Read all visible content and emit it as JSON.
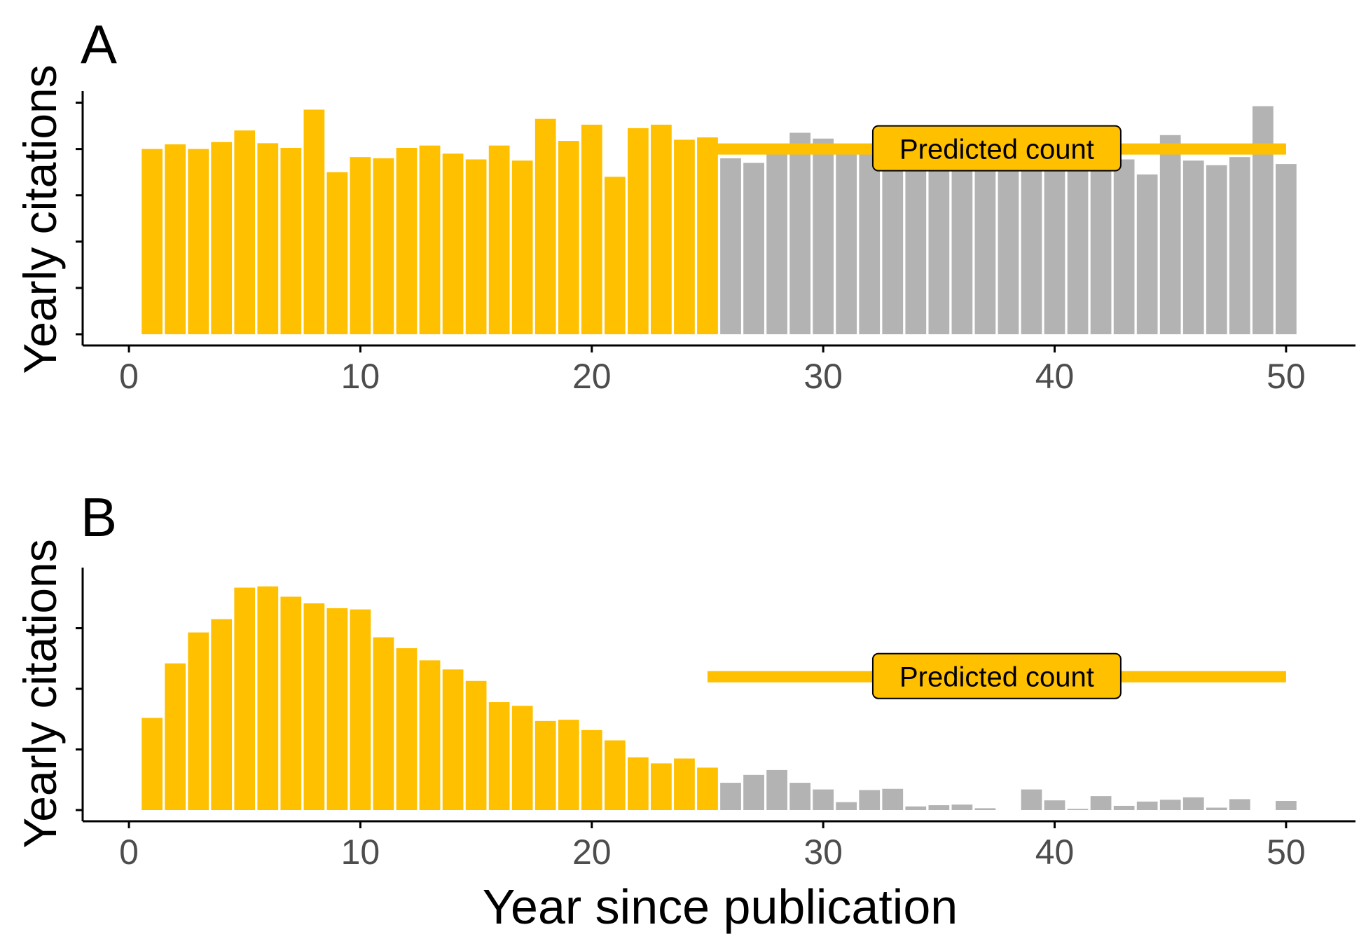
{
  "colors": {
    "observed": "#ffc000",
    "future": "#b3b3b3",
    "predicted_line": "#ffc000",
    "axis": "#000000",
    "tick_text": "#4d4d4d"
  },
  "xlabel": "Year since publication",
  "chart_data": [
    {
      "type": "bar",
      "panel": "A",
      "ylabel": "Yearly citations",
      "xlim": [
        -2,
        53
      ],
      "ylim": [
        0,
        10.5
      ],
      "x_ticks": [
        0,
        10,
        20,
        30,
        40,
        50
      ],
      "x_tick_labels": [
        "0",
        "10",
        "20",
        "30",
        "40",
        "50"
      ],
      "y_ticks": [
        0,
        2,
        4,
        6,
        8,
        10
      ],
      "y_tick_labels": [],
      "observed_years": [
        1,
        25
      ],
      "x": [
        1,
        2,
        3,
        4,
        5,
        6,
        7,
        8,
        9,
        10,
        11,
        12,
        13,
        14,
        15,
        16,
        17,
        18,
        19,
        20,
        21,
        22,
        23,
        24,
        25,
        26,
        27,
        28,
        29,
        30,
        31,
        32,
        33,
        34,
        35,
        36,
        37,
        38,
        39,
        40,
        41,
        42,
        43,
        44,
        45,
        46,
        47,
        48,
        49,
        50
      ],
      "values": [
        8.0,
        8.2,
        8.0,
        8.3,
        8.8,
        8.25,
        8.05,
        9.7,
        7.0,
        7.65,
        7.6,
        8.05,
        8.15,
        7.8,
        7.55,
        8.15,
        7.5,
        9.3,
        8.35,
        9.05,
        6.8,
        8.9,
        9.05,
        8.4,
        8.5,
        7.6,
        7.4,
        7.9,
        8.7,
        8.45,
        8.2,
        7.8,
        7.6,
        8.1,
        7.5,
        7.9,
        7.4,
        8.0,
        7.8,
        8.1,
        7.6,
        8.3,
        7.55,
        6.9,
        8.6,
        7.5,
        7.3,
        7.65,
        9.85,
        7.35
      ],
      "predicted_count": {
        "label": "Predicted count",
        "x_start": 25,
        "x_end": 50,
        "value": 8.0
      }
    },
    {
      "type": "bar",
      "panel": "B",
      "ylabel": "Yearly citations",
      "xlim": [
        -2,
        53
      ],
      "ylim": [
        0,
        4
      ],
      "x_ticks": [
        0,
        10,
        20,
        30,
        40,
        50
      ],
      "x_tick_labels": [
        "0",
        "10",
        "20",
        "30",
        "40",
        "50"
      ],
      "y_ticks": [
        0,
        1,
        2,
        3
      ],
      "y_tick_labels": [],
      "observed_years": [
        1,
        25
      ],
      "x": [
        1,
        2,
        3,
        4,
        5,
        6,
        7,
        8,
        9,
        10,
        11,
        12,
        13,
        14,
        15,
        16,
        17,
        18,
        19,
        20,
        21,
        22,
        23,
        24,
        25,
        26,
        27,
        28,
        29,
        30,
        31,
        32,
        33,
        34,
        35,
        36,
        37,
        38,
        39,
        40,
        41,
        42,
        43,
        44,
        45,
        46,
        47,
        48,
        49,
        50
      ],
      "values": [
        1.52,
        2.42,
        2.93,
        3.15,
        3.67,
        3.69,
        3.52,
        3.41,
        3.33,
        3.31,
        2.85,
        2.67,
        2.47,
        2.32,
        2.13,
        1.78,
        1.72,
        1.47,
        1.49,
        1.32,
        1.15,
        0.87,
        0.77,
        0.85,
        0.7,
        0.45,
        0.58,
        0.66,
        0.45,
        0.34,
        0.13,
        0.33,
        0.35,
        0.06,
        0.08,
        0.09,
        0.03,
        0.0,
        0.34,
        0.16,
        0.02,
        0.23,
        0.07,
        0.14,
        0.17,
        0.21,
        0.04,
        0.18,
        0.0,
        0.15
      ],
      "predicted_count": {
        "label": "Predicted count",
        "x_start": 25,
        "x_end": 50,
        "value": 2.2
      }
    }
  ]
}
